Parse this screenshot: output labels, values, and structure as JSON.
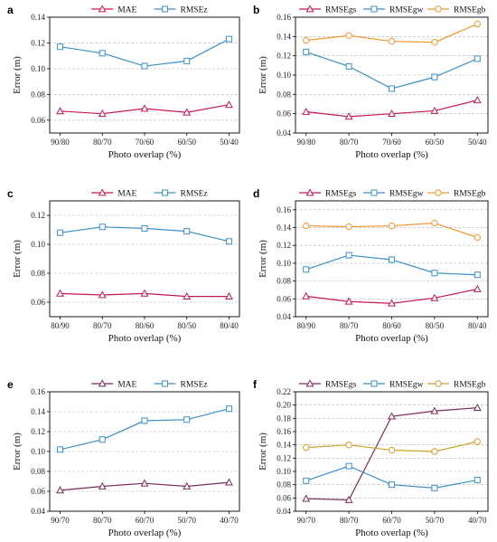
{
  "colors": {
    "mae": "#c2185b",
    "rmsez": "#3a8fc7",
    "rmsegs": "#c2185b",
    "rmsegs_f": "#7b2a5a",
    "rmsegw": "#3a8fc7",
    "rmsegb": "#f0962e",
    "rmsegb_f": "#c9a227"
  },
  "chart_data": [
    {
      "panel": "a",
      "type": "line",
      "xlabel": "Photo overlap (%)",
      "ylabel": "Error (m)",
      "categories": [
        "90/80",
        "80/70",
        "70/60",
        "60/50",
        "50/40"
      ],
      "ylim": [
        0.05,
        0.14
      ],
      "yticks": [
        0.06,
        0.08,
        0.1,
        0.12,
        0.14
      ],
      "grid": true,
      "legend": "top",
      "series": [
        {
          "name": "MAE",
          "marker": "triangle",
          "color": "#c2185b",
          "values": [
            0.067,
            0.065,
            0.069,
            0.066,
            0.072
          ]
        },
        {
          "name": "RMSEz",
          "marker": "square",
          "color": "#3a8fc7",
          "values": [
            0.117,
            0.112,
            0.102,
            0.106,
            0.123
          ]
        }
      ]
    },
    {
      "panel": "b",
      "type": "line",
      "xlabel": "Photo overlap (%)",
      "ylabel": "Error (m)",
      "categories": [
        "90/80",
        "80/70",
        "70/60",
        "60/50",
        "50/40"
      ],
      "ylim": [
        0.04,
        0.16
      ],
      "yticks": [
        0.04,
        0.06,
        0.08,
        0.1,
        0.12,
        0.14,
        0.16
      ],
      "grid": true,
      "legend": "top",
      "series": [
        {
          "name": "RMSEgs",
          "marker": "triangle",
          "color": "#c2185b",
          "values": [
            0.062,
            0.057,
            0.06,
            0.063,
            0.074
          ]
        },
        {
          "name": "RMSEgw",
          "marker": "square",
          "color": "#3a8fc7",
          "values": [
            0.124,
            0.109,
            0.086,
            0.098,
            0.117
          ]
        },
        {
          "name": "RMSEgb",
          "marker": "circle",
          "color": "#f0962e",
          "values": [
            0.136,
            0.141,
            0.135,
            0.134,
            0.153
          ]
        }
      ]
    },
    {
      "panel": "c",
      "type": "line",
      "xlabel": "Photo overlap (%)",
      "ylabel": "Error (m)",
      "categories": [
        "80/90",
        "80/70",
        "80/60",
        "80/50",
        "80/40"
      ],
      "ylim": [
        0.05,
        0.13
      ],
      "yticks": [
        0.06,
        0.08,
        0.1,
        0.12
      ],
      "grid": true,
      "legend": "top",
      "series": [
        {
          "name": "MAE",
          "marker": "triangle",
          "color": "#c2185b",
          "values": [
            0.066,
            0.065,
            0.066,
            0.064,
            0.064
          ]
        },
        {
          "name": "RMSEz",
          "marker": "square",
          "color": "#3a8fc7",
          "values": [
            0.108,
            0.112,
            0.111,
            0.109,
            0.102
          ]
        }
      ]
    },
    {
      "panel": "d",
      "type": "line",
      "xlabel": "Photo overlap (%)",
      "ylabel": "Error (m)",
      "categories": [
        "80/90",
        "80/70",
        "80/60",
        "80/50",
        "80/40"
      ],
      "ylim": [
        0.04,
        0.17
      ],
      "yticks": [
        0.04,
        0.06,
        0.08,
        0.1,
        0.12,
        0.14,
        0.16
      ],
      "grid": true,
      "legend": "top",
      "series": [
        {
          "name": "RMSEgs",
          "marker": "triangle",
          "color": "#c2185b",
          "values": [
            0.063,
            0.057,
            0.055,
            0.061,
            0.071
          ]
        },
        {
          "name": "RMSEgw",
          "marker": "square",
          "color": "#3a8fc7",
          "values": [
            0.093,
            0.109,
            0.104,
            0.089,
            0.087
          ]
        },
        {
          "name": "RMSEgb",
          "marker": "circle",
          "color": "#f0962e",
          "values": [
            0.142,
            0.141,
            0.142,
            0.145,
            0.129
          ]
        }
      ]
    },
    {
      "panel": "e",
      "type": "line",
      "xlabel": "Photo overlap (%)",
      "ylabel": "Error (m)",
      "categories": [
        "90/70",
        "80/70",
        "60/70",
        "50/70",
        "40/70"
      ],
      "ylim": [
        0.04,
        0.16
      ],
      "yticks": [
        0.04,
        0.06,
        0.08,
        0.1,
        0.12,
        0.14,
        0.16
      ],
      "grid": true,
      "legend": "top",
      "series": [
        {
          "name": "MAE",
          "marker": "triangle",
          "color": "#7b2a5a",
          "values": [
            0.061,
            0.065,
            0.068,
            0.065,
            0.069
          ]
        },
        {
          "name": "RMSEz",
          "marker": "square",
          "color": "#3a8fc7",
          "values": [
            0.102,
            0.112,
            0.131,
            0.132,
            0.143
          ]
        }
      ]
    },
    {
      "panel": "f",
      "type": "line",
      "xlabel": "Photo overlap (%)",
      "ylabel": "Error (m)",
      "categories": [
        "90/70",
        "80/70",
        "60/70",
        "50/70",
        "40/70"
      ],
      "ylim": [
        0.04,
        0.22
      ],
      "yticks": [
        0.04,
        0.06,
        0.08,
        0.1,
        0.12,
        0.14,
        0.16,
        0.18,
        0.2,
        0.22
      ],
      "grid": true,
      "legend": "top",
      "series": [
        {
          "name": "RMSEgs",
          "marker": "triangle",
          "color": "#7b2a5a",
          "values": [
            0.059,
            0.057,
            0.183,
            0.191,
            0.196
          ]
        },
        {
          "name": "RMSEgw",
          "marker": "square",
          "color": "#3a8fc7",
          "values": [
            0.086,
            0.108,
            0.08,
            0.075,
            0.087
          ]
        },
        {
          "name": "RMSEgb",
          "marker": "circle",
          "color": "#c9a227",
          "values": [
            0.136,
            0.14,
            0.132,
            0.13,
            0.145
          ]
        }
      ]
    }
  ]
}
